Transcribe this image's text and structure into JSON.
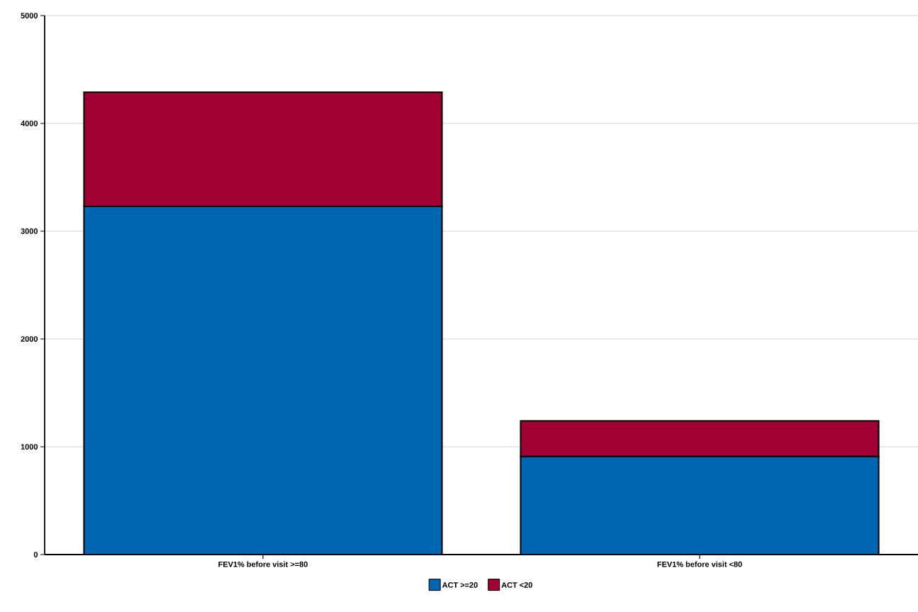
{
  "chart_data": {
    "type": "bar",
    "stacked": true,
    "categories": [
      "FEV1% before visit >=80",
      "FEV1% before visit <80"
    ],
    "series": [
      {
        "name": "ACT >=20",
        "color": "#0066b1",
        "values": [
          3230,
          910
        ]
      },
      {
        "name": "ACT <20",
        "color": "#a10035",
        "values": [
          1060,
          330
        ]
      }
    ],
    "ylim": [
      0,
      5000
    ],
    "yticks": [
      0,
      1000,
      2000,
      3000,
      4000,
      5000
    ],
    "grid": "y",
    "legend": "bottom"
  }
}
